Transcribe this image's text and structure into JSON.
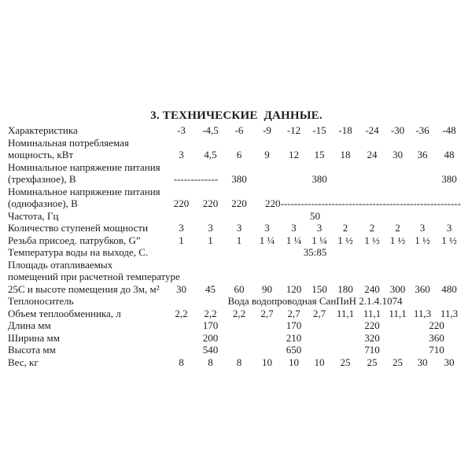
{
  "page": {
    "title": "3. ТЕХНИЧЕСКИЕ  ДАННЫЕ."
  },
  "table": {
    "header_label": "Характеристика",
    "model_columns": [
      "-3",
      "-4,5",
      "-6",
      "-9",
      "-12",
      "-15",
      "-18",
      "-24",
      "-30",
      "-36",
      "-48"
    ],
    "rows": [
      {
        "label": "Характеристика",
        "cells": [
          {
            "t": "-3"
          },
          {
            "t": "-4,5"
          },
          {
            "t": "-6"
          },
          {
            "t": "-9"
          },
          {
            "t": "-12"
          },
          {
            "t": "-15"
          },
          {
            "t": "-18"
          },
          {
            "t": "-24"
          },
          {
            "t": "-30"
          },
          {
            "t": "-36"
          },
          {
            "t": "-48"
          }
        ]
      },
      {
        "label": "Номинальная потребляемая\nмощность, кВт",
        "cells": [
          {
            "t": "3"
          },
          {
            "t": "4,5"
          },
          {
            "t": "6"
          },
          {
            "t": "9"
          },
          {
            "t": "12"
          },
          {
            "t": "15"
          },
          {
            "t": "18"
          },
          {
            "t": "24"
          },
          {
            "t": "30"
          },
          {
            "t": "36"
          },
          {
            "t": "48"
          }
        ]
      },
      {
        "label": "Номинальное напряжение питания\n(трехфазное), В",
        "cells": [
          {
            "t": "-------------",
            "span": 2
          },
          {
            "t": "380"
          },
          {
            "t": ""
          },
          {
            "t": ""
          },
          {
            "t": "380"
          },
          {
            "t": ""
          },
          {
            "t": ""
          },
          {
            "t": ""
          },
          {
            "t": ""
          },
          {
            "t": "380"
          }
        ]
      },
      {
        "label": "Номинальное напряжение питания\n(однофазное), В",
        "cells": [
          {
            "t": "220"
          },
          {
            "t": "220"
          },
          {
            "t": "220"
          },
          {
            "t": "220-----------------------------------------------------",
            "span": 8,
            "align": "left"
          }
        ]
      },
      {
        "label": "Частота, Гц",
        "cells": [
          {
            "t": "50",
            "span": 11
          }
        ]
      },
      {
        "label": "Количество ступеней мощности",
        "cells": [
          {
            "t": "3"
          },
          {
            "t": "3"
          },
          {
            "t": "3"
          },
          {
            "t": "3"
          },
          {
            "t": "3"
          },
          {
            "t": "3"
          },
          {
            "t": "2"
          },
          {
            "t": "2"
          },
          {
            "t": "2"
          },
          {
            "t": "3"
          },
          {
            "t": "3"
          }
        ]
      },
      {
        "label": "Резьба присоед. патрубков, G”",
        "cells": [
          {
            "t": "1"
          },
          {
            "t": "1"
          },
          {
            "t": "1"
          },
          {
            "t": "1 ¼"
          },
          {
            "t": "1 ¼"
          },
          {
            "t": "1 ¼"
          },
          {
            "t": "1 ½"
          },
          {
            "t": "1 ½"
          },
          {
            "t": "1 ½"
          },
          {
            "t": "1 ½"
          },
          {
            "t": "1 ½"
          }
        ]
      },
      {
        "label": "Температура воды на выходе, С.",
        "cells": [
          {
            "t": "35:85",
            "span": 11
          }
        ]
      },
      {
        "label": "Площадь отапливаемых\nпомещений при расчетной температуре\n25С и высоте помещения до 3м, м²",
        "cells": [
          {
            "t": "30"
          },
          {
            "t": "45"
          },
          {
            "t": "60"
          },
          {
            "t": "90"
          },
          {
            "t": "120"
          },
          {
            "t": "150"
          },
          {
            "t": "180"
          },
          {
            "t": "240"
          },
          {
            "t": "300"
          },
          {
            "t": "360"
          },
          {
            "t": "480"
          }
        ]
      },
      {
        "label": "Теплоноситель",
        "cells": [
          {
            "t": "Вода водопроводная СанПиН 2.1.4.1074",
            "span": 11
          }
        ]
      },
      {
        "label": "Объем теплообменника, л",
        "cells": [
          {
            "t": "2,2"
          },
          {
            "t": "2,2"
          },
          {
            "t": "2,2"
          },
          {
            "t": "2,7"
          },
          {
            "t": "2,7"
          },
          {
            "t": "2,7"
          },
          {
            "t": "11,1"
          },
          {
            "t": "11,1"
          },
          {
            "t": "11,1"
          },
          {
            "t": "11,3"
          },
          {
            "t": "11,3"
          }
        ]
      },
      {
        "label": "Длина мм",
        "cells": [
          {
            "t": ""
          },
          {
            "t": "170"
          },
          {
            "t": ""
          },
          {
            "t": ""
          },
          {
            "t": "170"
          },
          {
            "t": ""
          },
          {
            "t": ""
          },
          {
            "t": "220"
          },
          {
            "t": ""
          },
          {
            "t": "220",
            "span": 2
          }
        ]
      },
      {
        "label": "Ширина мм",
        "cells": [
          {
            "t": ""
          },
          {
            "t": "200"
          },
          {
            "t": ""
          },
          {
            "t": ""
          },
          {
            "t": "210"
          },
          {
            "t": ""
          },
          {
            "t": ""
          },
          {
            "t": "320"
          },
          {
            "t": ""
          },
          {
            "t": "360",
            "span": 2
          }
        ]
      },
      {
        "label": "Высота мм",
        "cells": [
          {
            "t": ""
          },
          {
            "t": "540"
          },
          {
            "t": ""
          },
          {
            "t": ""
          },
          {
            "t": "650"
          },
          {
            "t": ""
          },
          {
            "t": ""
          },
          {
            "t": "710"
          },
          {
            "t": ""
          },
          {
            "t": "710",
            "span": 2
          }
        ]
      },
      {
        "label": "Вес, кг",
        "cells": [
          {
            "t": "8"
          },
          {
            "t": "8"
          },
          {
            "t": "8"
          },
          {
            "t": "10"
          },
          {
            "t": "10"
          },
          {
            "t": "10"
          },
          {
            "t": "25"
          },
          {
            "t": "25"
          },
          {
            "t": "25"
          },
          {
            "t": "30"
          },
          {
            "t": "30"
          }
        ]
      }
    ]
  }
}
